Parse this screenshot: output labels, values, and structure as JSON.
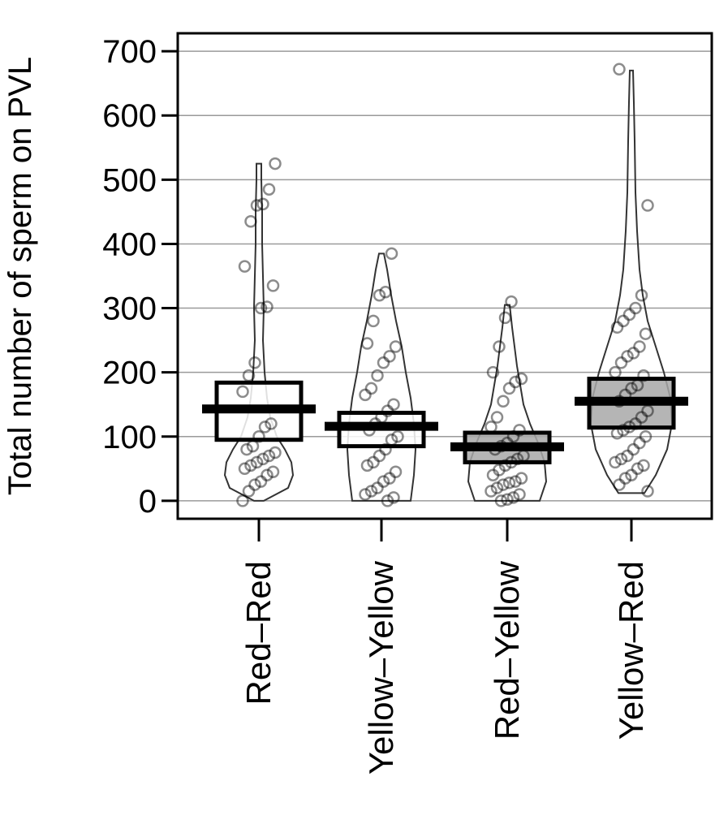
{
  "chart_data": {
    "type": "pirate",
    "title": "",
    "ylabel": "Total number of sperm on PVL",
    "xlabel": "",
    "ylim": [
      -28,
      728
    ],
    "yticks": [
      0,
      100,
      200,
      300,
      400,
      500,
      600,
      700
    ],
    "grid": "horizontal",
    "groups": [
      {
        "label": "Red–Red",
        "mean": 143,
        "ci": [
          95,
          184
        ],
        "fill": "#ffffff",
        "points": [
          0,
          15,
          25,
          30,
          40,
          45,
          50,
          55,
          60,
          65,
          70,
          75,
          80,
          85,
          100,
          115,
          120,
          170,
          195,
          215,
          300,
          302,
          335,
          365,
          435,
          460,
          462,
          485,
          525
        ],
        "violin": [
          [
            0,
            6
          ],
          [
            20,
            36
          ],
          [
            40,
            42
          ],
          [
            60,
            40
          ],
          [
            80,
            32
          ],
          [
            100,
            22
          ],
          [
            130,
            14
          ],
          [
            160,
            10
          ],
          [
            200,
            7
          ],
          [
            250,
            5
          ],
          [
            300,
            6
          ],
          [
            350,
            5
          ],
          [
            400,
            4
          ],
          [
            450,
            4
          ],
          [
            500,
            3
          ],
          [
            525,
            3
          ]
        ]
      },
      {
        "label": "Yellow–Yellow",
        "mean": 116,
        "ci": [
          85,
          137
        ],
        "fill": "#ffffff",
        "points": [
          0,
          5,
          10,
          15,
          20,
          30,
          35,
          45,
          55,
          60,
          70,
          80,
          95,
          100,
          110,
          120,
          130,
          140,
          150,
          165,
          175,
          195,
          215,
          225,
          240,
          245,
          280,
          320,
          325,
          385
        ],
        "violin": [
          [
            0,
            36
          ],
          [
            40,
            40
          ],
          [
            80,
            42
          ],
          [
            120,
            40
          ],
          [
            160,
            36
          ],
          [
            200,
            30
          ],
          [
            240,
            25
          ],
          [
            280,
            18
          ],
          [
            320,
            12
          ],
          [
            360,
            7
          ],
          [
            385,
            3
          ]
        ]
      },
      {
        "label": "Red–Yellow",
        "mean": 84,
        "ci": [
          60,
          106
        ],
        "fill": "#a8a8a8",
        "points": [
          0,
          2,
          5,
          10,
          15,
          20,
          25,
          28,
          30,
          35,
          40,
          48,
          55,
          60,
          65,
          70,
          80,
          85,
          90,
          100,
          110,
          115,
          130,
          155,
          175,
          185,
          190,
          200,
          240,
          285,
          310
        ],
        "violin": [
          [
            0,
            40
          ],
          [
            30,
            48
          ],
          [
            60,
            46
          ],
          [
            90,
            38
          ],
          [
            120,
            28
          ],
          [
            150,
            20
          ],
          [
            180,
            16
          ],
          [
            210,
            12
          ],
          [
            240,
            9
          ],
          [
            270,
            6
          ],
          [
            305,
            3
          ]
        ]
      },
      {
        "label": "Yellow–Red",
        "mean": 155,
        "ci": [
          114,
          190
        ],
        "fill": "#a8a8a8",
        "points": [
          15,
          25,
          35,
          40,
          50,
          55,
          60,
          65,
          70,
          80,
          90,
          100,
          105,
          110,
          115,
          120,
          130,
          140,
          155,
          165,
          175,
          180,
          195,
          200,
          215,
          225,
          230,
          240,
          260,
          270,
          280,
          290,
          300,
          320,
          460,
          672
        ],
        "violin": [
          [
            12,
            16
          ],
          [
            40,
            30
          ],
          [
            80,
            44
          ],
          [
            120,
            50
          ],
          [
            160,
            48
          ],
          [
            200,
            40
          ],
          [
            240,
            30
          ],
          [
            280,
            20
          ],
          [
            320,
            14
          ],
          [
            360,
            10
          ],
          [
            420,
            7
          ],
          [
            480,
            5
          ],
          [
            560,
            4
          ],
          [
            620,
            3
          ],
          [
            670,
            2
          ]
        ]
      }
    ]
  }
}
